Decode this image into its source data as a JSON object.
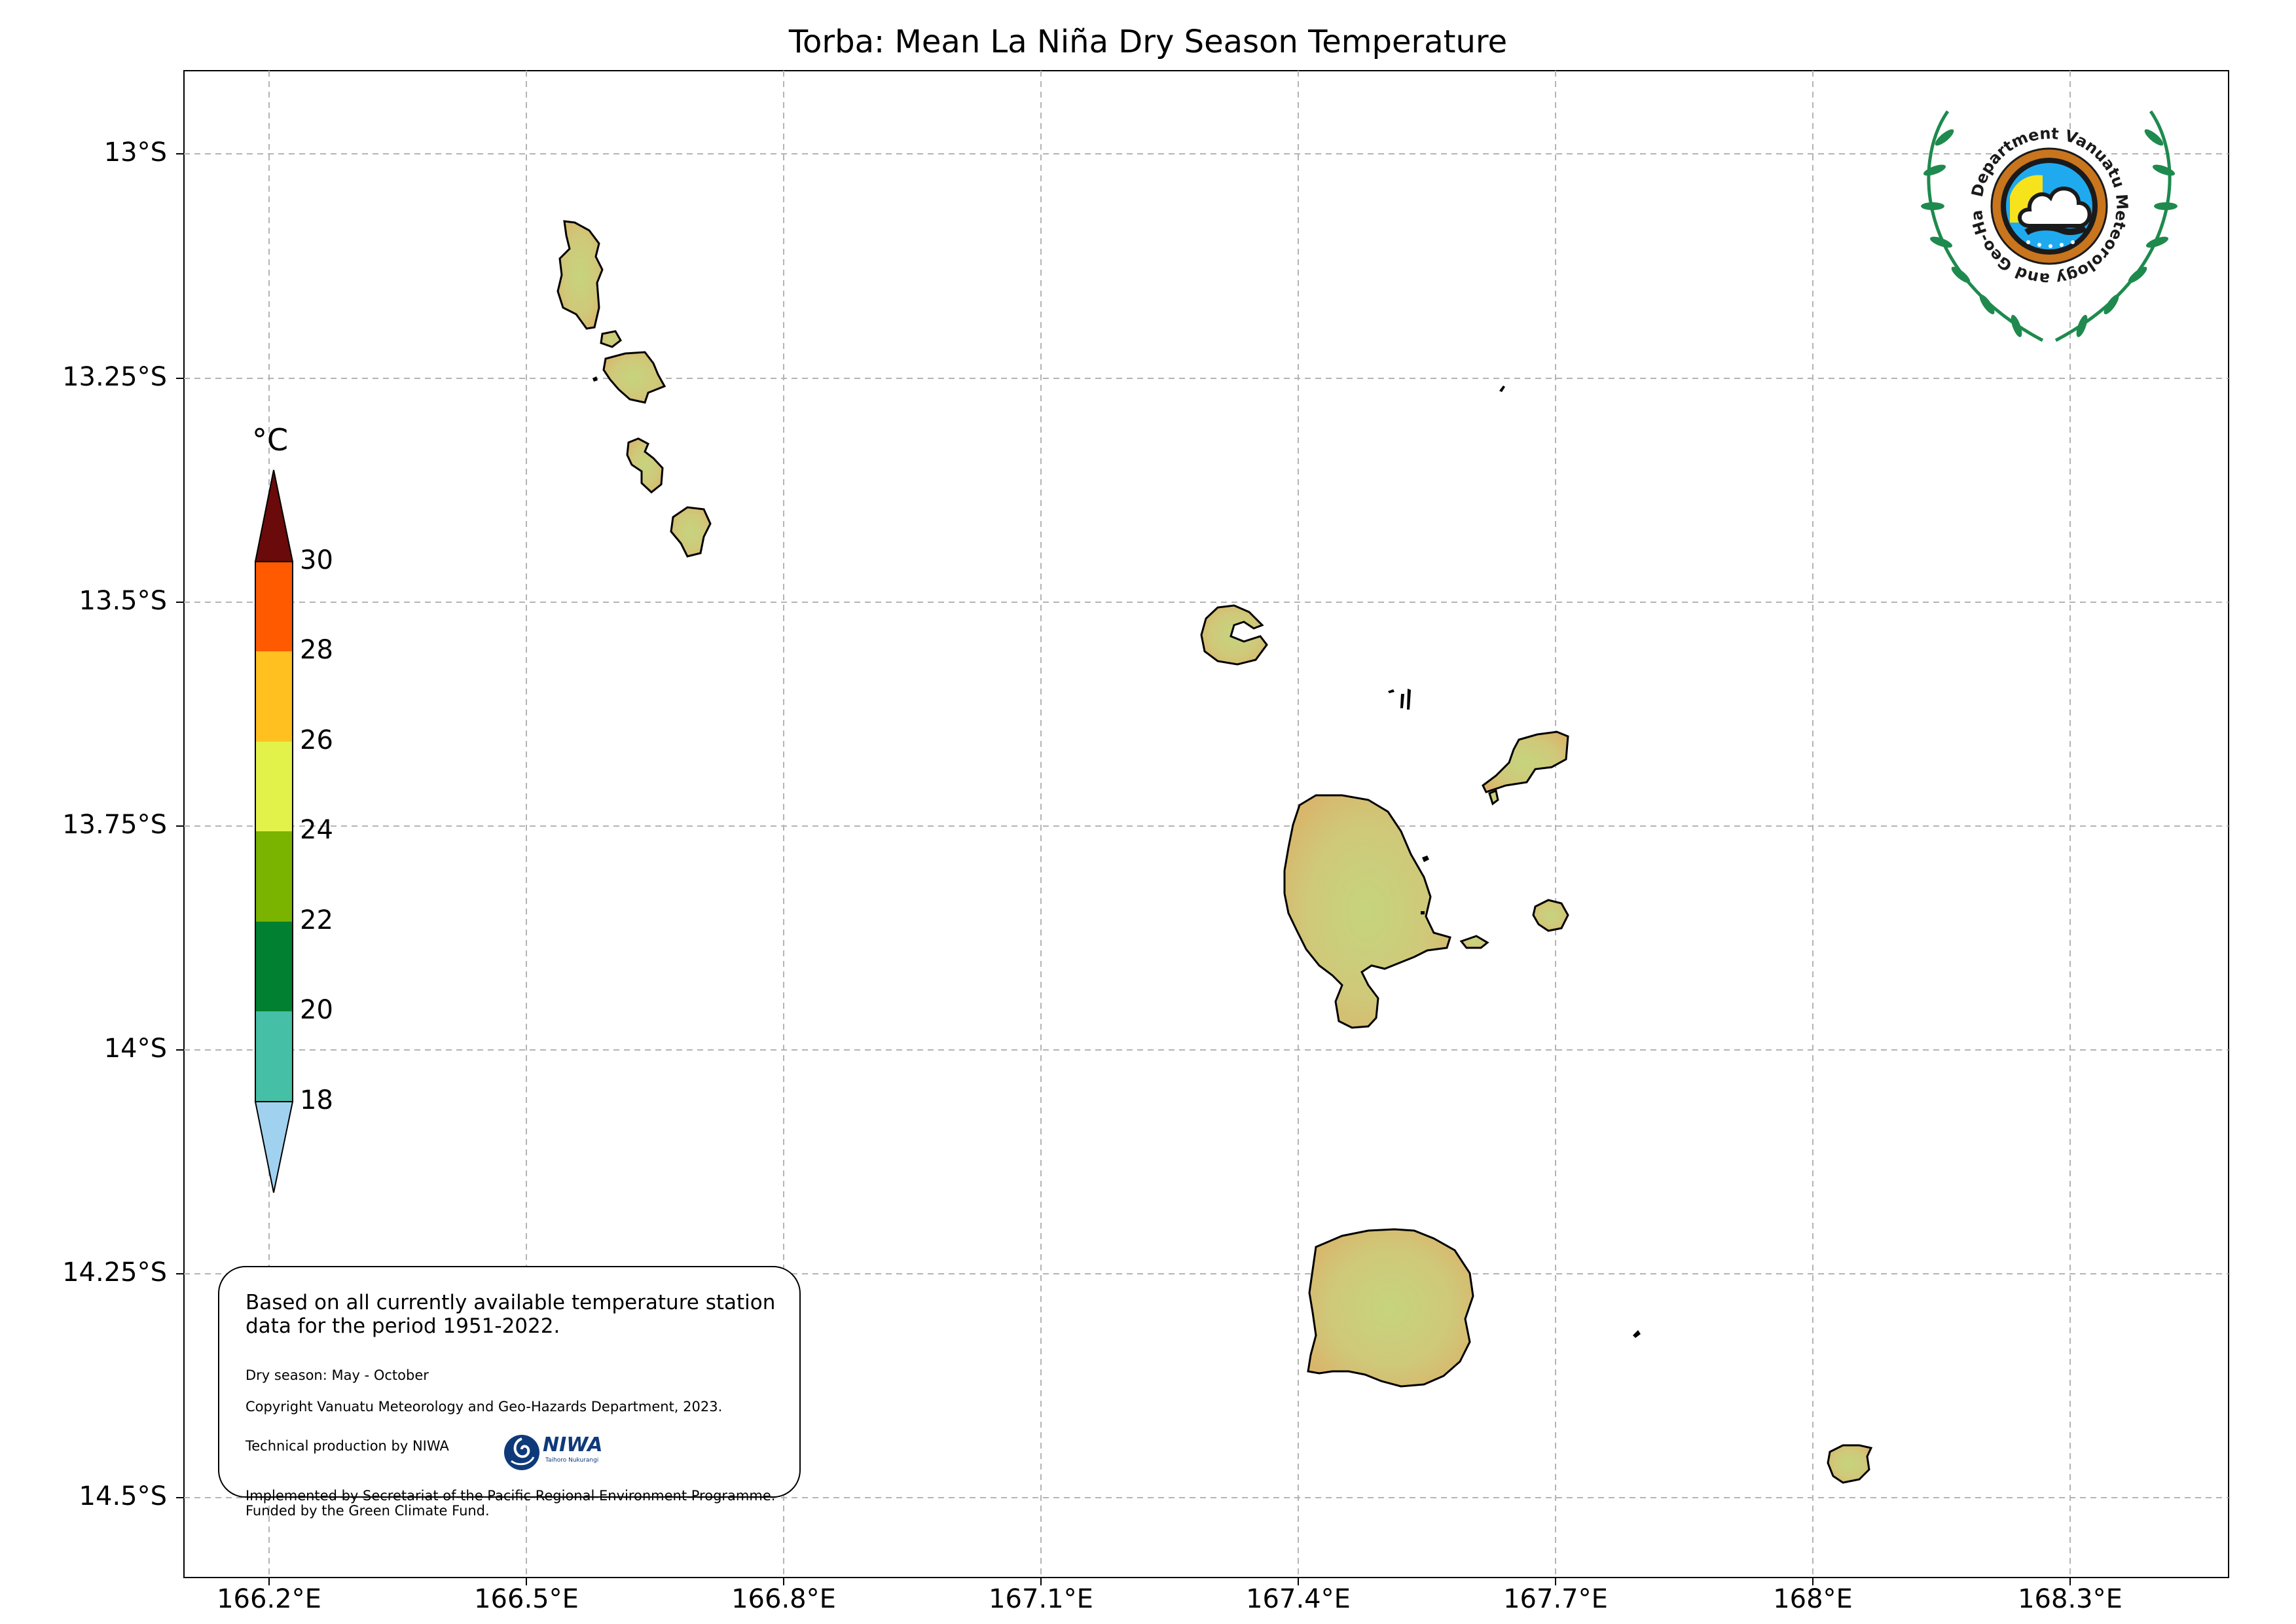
{
  "title": "Torba: Mean La Niña Dry Season Temperature",
  "axes": {
    "x_ticks": [
      "166.2°E",
      "166.5°E",
      "166.8°E",
      "167.1°E",
      "167.4°E",
      "167.7°E",
      "168°E",
      "168.3°E"
    ],
    "y_ticks": [
      "13°S",
      "13.25°S",
      "13.5°S",
      "13.75°S",
      "14°S",
      "14.25°S",
      "14.5°S"
    ]
  },
  "colorbar": {
    "unit": "°C",
    "labels": [
      "30",
      "28",
      "26",
      "24",
      "22",
      "20",
      "18"
    ],
    "colors": [
      "#6b0a0a",
      "#ff5a00",
      "#ffc020",
      "#e2f24a",
      "#7ab300",
      "#008030",
      "#45bfa5",
      "#a0d2f0"
    ]
  },
  "info": {
    "main": "Based on all currently available temperature station data for the period 1951-2022.",
    "season": "Dry season: May - October",
    "copyright": "Copyright Vanuatu Meteorology and Geo-Hazards Department, 2023.",
    "technical": "Technical production by NIWA",
    "niwa_name": "NIWA",
    "niwa_sub": "Taihoro Nukurangi",
    "implemented": "Implemented by Secretariat of the Pacific Regional Environment Programme.",
    "funded": "Funded by the Green Climate Fund."
  },
  "logo": {
    "text": "Department Vanuatu Meteorology and Geo-Hazards",
    "icon": "vmgd-emblem-icon"
  },
  "map_colors": {
    "land": "#d9b56a",
    "land_cool": "#c9d27a",
    "coast": "#000000",
    "grid": "#b4b4b4"
  }
}
